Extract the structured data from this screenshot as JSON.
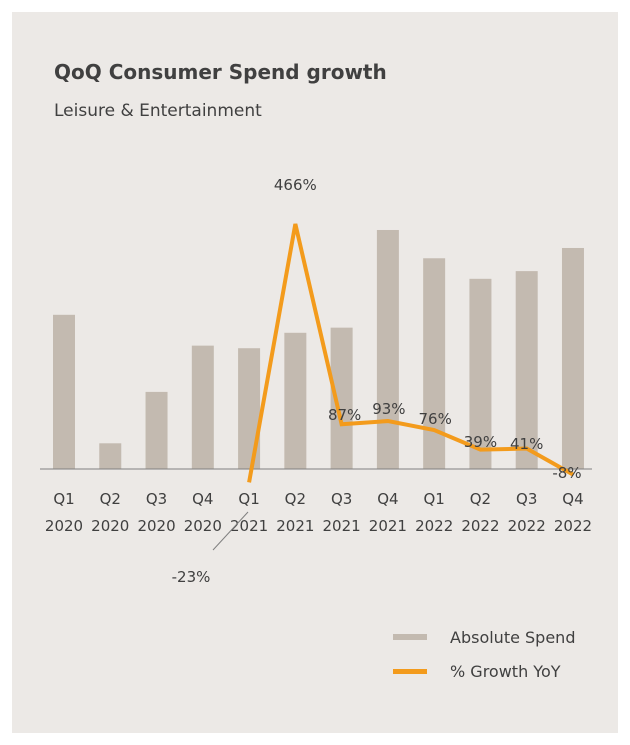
{
  "title": "QoQ Consumer Spend growth",
  "subtitle": "Leisure & Entertainment",
  "colors": {
    "background": "#ece9e6",
    "bar": "#c3bab0",
    "line": "#f39b1c",
    "text": "#404040",
    "axis": "#808080"
  },
  "chart_data": {
    "type": "bar",
    "categories": [
      [
        "Q1",
        "2020"
      ],
      [
        "Q2",
        "2020"
      ],
      [
        "Q3",
        "2020"
      ],
      [
        "Q4",
        "2020"
      ],
      [
        "Q1",
        "2021"
      ],
      [
        "Q2",
        "2021"
      ],
      [
        "Q3",
        "2021"
      ],
      [
        "Q4",
        "2021"
      ],
      [
        "Q1",
        "2022"
      ],
      [
        "Q2",
        "2022"
      ],
      [
        "Q3",
        "2022"
      ],
      [
        "Q4",
        "2022"
      ]
    ],
    "series": [
      {
        "name": "Absolute Spend",
        "type": "bar",
        "values": [
          60,
          10,
          30,
          48,
          47,
          53,
          55,
          93,
          82,
          74,
          77,
          86
        ]
      },
      {
        "name": "% Growth YoY",
        "type": "line",
        "values": [
          null,
          null,
          null,
          null,
          -23,
          466,
          87,
          93,
          76,
          39,
          41,
          -8
        ],
        "labels": [
          null,
          null,
          null,
          null,
          "-23%",
          "466%",
          "87%",
          "93%",
          "76%",
          "39%",
          "41%",
          "-8%"
        ]
      }
    ],
    "bar_ylim": [
      0,
      100
    ],
    "line_ylim": [
      -45,
      500
    ],
    "legend": "bottom-right",
    "grid": false
  }
}
